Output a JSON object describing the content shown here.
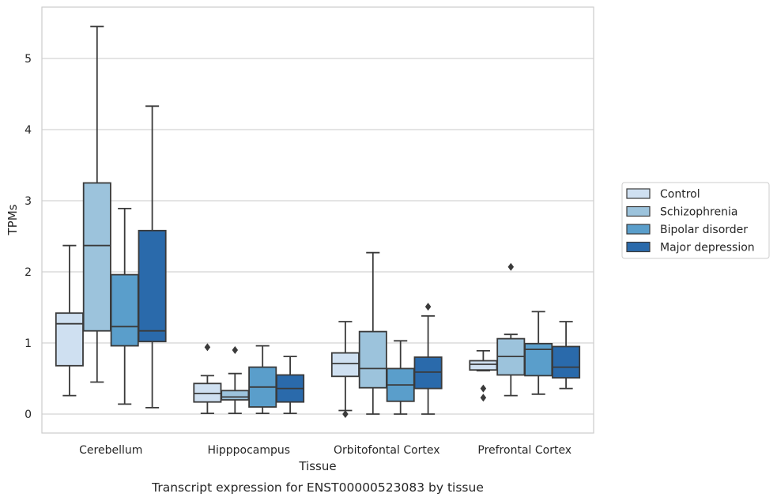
{
  "chart_data": {
    "type": "boxplot",
    "caption": "Transcript expression for ENST00000523083 by tissue",
    "xlabel": "Tissue",
    "ylabel": "TPMs",
    "ylim": [
      -0.27,
      5.72
    ],
    "yticks": [
      "0",
      "1",
      "2",
      "3",
      "4",
      "5"
    ],
    "categories": [
      "Cerebellum",
      "Hipppocampus",
      "Orbitofontal Cortex",
      "Prefrontal Cortex"
    ],
    "grid": "horizontal",
    "legend_position": "right",
    "series": [
      {
        "name": "Control",
        "color": "#cfe0f1",
        "boxes": [
          {
            "whisker_low": 0.26,
            "q1": 0.68,
            "median": 1.27,
            "q3": 1.42,
            "whisker_high": 2.37,
            "outliers": []
          },
          {
            "whisker_low": 0.01,
            "q1": 0.17,
            "median": 0.29,
            "q3": 0.43,
            "whisker_high": 0.54,
            "outliers": [
              0.94
            ]
          },
          {
            "whisker_low": 0.05,
            "q1": 0.53,
            "median": 0.71,
            "q3": 0.86,
            "whisker_high": 1.3,
            "outliers": [
              0.0
            ]
          },
          {
            "whisker_low": 0.61,
            "q1": 0.62,
            "median": 0.7,
            "q3": 0.75,
            "whisker_high": 0.89,
            "outliers": [
              0.36,
              0.23
            ]
          }
        ]
      },
      {
        "name": "Schizophrenia",
        "color": "#9cc3dc",
        "boxes": [
          {
            "whisker_low": 0.45,
            "q1": 1.17,
            "median": 2.37,
            "q3": 3.25,
            "whisker_high": 5.45,
            "outliers": []
          },
          {
            "whisker_low": 0.01,
            "q1": 0.2,
            "median": 0.24,
            "q3": 0.33,
            "whisker_high": 0.57,
            "outliers": [
              0.9
            ]
          },
          {
            "whisker_low": 0.0,
            "q1": 0.37,
            "median": 0.64,
            "q3": 1.16,
            "whisker_high": 2.27,
            "outliers": []
          },
          {
            "whisker_low": 0.26,
            "q1": 0.55,
            "median": 0.81,
            "q3": 1.06,
            "whisker_high": 1.12,
            "outliers": [
              2.07
            ]
          }
        ]
      },
      {
        "name": "Bipolar disorder",
        "color": "#5a9ecb",
        "boxes": [
          {
            "whisker_low": 0.14,
            "q1": 0.96,
            "median": 1.23,
            "q3": 1.96,
            "whisker_high": 2.89,
            "outliers": []
          },
          {
            "whisker_low": 0.01,
            "q1": 0.1,
            "median": 0.38,
            "q3": 0.66,
            "whisker_high": 0.96,
            "outliers": []
          },
          {
            "whisker_low": 0.0,
            "q1": 0.18,
            "median": 0.41,
            "q3": 0.64,
            "whisker_high": 1.03,
            "outliers": []
          },
          {
            "whisker_low": 0.28,
            "q1": 0.54,
            "median": 0.91,
            "q3": 0.99,
            "whisker_high": 1.44,
            "outliers": []
          }
        ]
      },
      {
        "name": "Major depression",
        "color": "#2a6aab",
        "boxes": [
          {
            "whisker_low": 0.09,
            "q1": 1.02,
            "median": 1.17,
            "q3": 2.58,
            "whisker_high": 4.33,
            "outliers": []
          },
          {
            "whisker_low": 0.01,
            "q1": 0.17,
            "median": 0.36,
            "q3": 0.55,
            "whisker_high": 0.81,
            "outliers": []
          },
          {
            "whisker_low": 0.0,
            "q1": 0.36,
            "median": 0.59,
            "q3": 0.8,
            "whisker_high": 1.38,
            "outliers": [
              1.51
            ]
          },
          {
            "whisker_low": 0.36,
            "q1": 0.51,
            "median": 0.66,
            "q3": 0.95,
            "whisker_high": 1.3,
            "outliers": []
          }
        ]
      }
    ]
  }
}
